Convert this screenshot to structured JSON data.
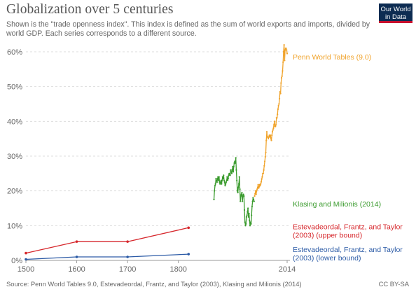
{
  "header": {
    "title": "Globalization over 5 centuries",
    "subtitle": "Shown is the \"trade openness index\". This index is defined as the sum of world exports and imports, divided by world GDP. Each series corresponds to a different source."
  },
  "logo": {
    "line1": "Our World",
    "line2": "in Data"
  },
  "footer": {
    "source": "Source: Penn World Tables 9.0, Estevadeordal, Frantz, and Taylor (2003), Klasing and Milionis (2014)",
    "license": "CC BY-SA"
  },
  "colors": {
    "penn": "#f0a32b",
    "klasing": "#3b9b2e",
    "upper": "#d6262b",
    "lower": "#2c5ba6",
    "grid": "#dddddd",
    "axis_text": "#666666"
  },
  "chart_data": {
    "type": "line",
    "title": "Globalization over 5 centuries",
    "xlim": [
      1500,
      2014
    ],
    "ylim": [
      0,
      62
    ],
    "x_ticks": [
      1500,
      1600,
      1700,
      1800,
      2014
    ],
    "x_tick_labels": [
      "1500",
      "1600",
      "1700",
      "1800",
      "2014"
    ],
    "y_ticks": [
      0,
      10,
      20,
      30,
      40,
      50,
      60
    ],
    "y_tick_labels": [
      "0%",
      "10%",
      "20%",
      "30%",
      "40%",
      "50%",
      "60%"
    ],
    "grid": true,
    "series": [
      {
        "name": "Penn World Tables (9.0)",
        "label": "Penn World Tables (9.0)",
        "label_y": 58.5,
        "color": "#f0a32b",
        "x": [
          1950,
          1951,
          1952,
          1953,
          1954,
          1955,
          1956,
          1957,
          1958,
          1959,
          1960,
          1961,
          1962,
          1963,
          1964,
          1965,
          1966,
          1967,
          1968,
          1969,
          1970,
          1971,
          1972,
          1973,
          1974,
          1975,
          1976,
          1977,
          1978,
          1979,
          1980,
          1981,
          1982,
          1983,
          1984,
          1985,
          1986,
          1987,
          1988,
          1989,
          1990,
          1991,
          1992,
          1993,
          1994,
          1995,
          1996,
          1997,
          1998,
          1999,
          2000,
          2001,
          2002,
          2003,
          2004,
          2005,
          2006,
          2007,
          2008,
          2009,
          2010,
          2011,
          2012,
          2013,
          2014
        ],
        "values": [
          18.5,
          19.2,
          20.0,
          19.0,
          20.0,
          20.5,
          21.0,
          21.8,
          20.8,
          21.2,
          21.8,
          21.5,
          22.0,
          22.6,
          23.4,
          24.0,
          25.0,
          25.0,
          26.0,
          27.2,
          28.5,
          29.8,
          31.0,
          34.5,
          37.0,
          35.5,
          35.5,
          35.0,
          35.5,
          36.0,
          35.5,
          36.0,
          35.0,
          34.5,
          36.0,
          37.0,
          37.5,
          38.0,
          39.0,
          40.0,
          38.5,
          38.5,
          39.0,
          41.0,
          41.0,
          42.0,
          43.5,
          44.5,
          45.0,
          46.5,
          48.5,
          48.0,
          51.0,
          52.5,
          53.0,
          54.5,
          57.0,
          60.0,
          62.0,
          57.5,
          60.5,
          61.0,
          61.0,
          60.5,
          59.5
        ]
      },
      {
        "name": "Klasing and Milionis (2014)",
        "label": "Klasing and Milionis (2014)",
        "label_y": 16.2,
        "color": "#3b9b2e",
        "x": [
          1870,
          1871,
          1872,
          1873,
          1874,
          1875,
          1876,
          1877,
          1878,
          1879,
          1880,
          1881,
          1882,
          1883,
          1884,
          1885,
          1886,
          1887,
          1888,
          1889,
          1890,
          1891,
          1892,
          1893,
          1894,
          1895,
          1896,
          1897,
          1898,
          1899,
          1900,
          1901,
          1902,
          1903,
          1904,
          1905,
          1906,
          1907,
          1908,
          1909,
          1910,
          1911,
          1912,
          1913,
          1914,
          1915,
          1916,
          1917,
          1918,
          1919,
          1920,
          1921,
          1922,
          1923,
          1924,
          1925,
          1926,
          1927,
          1928,
          1929,
          1930,
          1931,
          1932,
          1933,
          1934,
          1935,
          1936,
          1937,
          1938,
          1939,
          1940,
          1941,
          1942,
          1943,
          1944,
          1945,
          1946,
          1947,
          1948,
          1949
        ],
        "values": [
          17.5,
          20.0,
          21.5,
          22.0,
          23.5,
          23.0,
          22.5,
          23.5,
          24.0,
          23.0,
          24.0,
          22.5,
          22.0,
          22.5,
          23.0,
          22.0,
          23.0,
          24.0,
          23.5,
          24.5,
          23.0,
          22.5,
          21.5,
          22.0,
          22.5,
          23.0,
          24.0,
          23.0,
          23.5,
          24.5,
          25.0,
          24.5,
          24.5,
          26.0,
          25.5,
          25.0,
          26.0,
          27.0,
          25.5,
          27.0,
          28.0,
          28.5,
          28.0,
          29.5,
          26.0,
          23.0,
          20.0,
          19.5,
          21.0,
          22.0,
          24.0,
          20.5,
          17.0,
          18.5,
          19.0,
          19.5,
          17.0,
          18.5,
          19.0,
          18.5,
          14.5,
          11.0,
          10.0,
          10.5,
          12.5,
          13.0,
          14.0,
          15.0,
          12.5,
          13.5,
          11.5,
          10.0,
          11.0,
          10.5,
          13.0,
          15.5,
          17.0,
          18.0,
          17.5,
          17.0
        ]
      },
      {
        "name": "Estevadeordal, Frantz, and Taylor (2003) (upper bound)",
        "label_lines": [
          "Estevadeordal, Frantz, and Taylor",
          "(2003) (upper bound)"
        ],
        "label_y": 9.7,
        "color": "#d6262b",
        "x": [
          1500,
          1600,
          1700,
          1820
        ],
        "values": [
          2.1,
          5.4,
          5.4,
          9.4
        ]
      },
      {
        "name": "Estevadeordal, Frantz, and Taylor (2003) (lower bound)",
        "label_lines": [
          "Estevadeordal, Frantz, and Taylor",
          "(2003) (lower bound)"
        ],
        "label_y": 3.1,
        "color": "#2c5ba6",
        "x": [
          1500,
          1600,
          1700,
          1820
        ],
        "values": [
          0.3,
          1.0,
          1.0,
          1.8
        ]
      }
    ]
  }
}
